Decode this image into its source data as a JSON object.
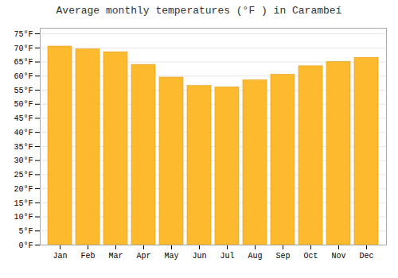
{
  "chart_data": {
    "type": "bar",
    "title": "Average monthly temperatures (°F ) in Carambeí",
    "categories": [
      "Jan",
      "Feb",
      "Mar",
      "Apr",
      "May",
      "Jun",
      "Jul",
      "Aug",
      "Sep",
      "Oct",
      "Nov",
      "Dec"
    ],
    "values": [
      70.5,
      69.5,
      68.5,
      64.0,
      59.5,
      56.5,
      56.0,
      58.5,
      60.5,
      63.5,
      65.0,
      66.5
    ],
    "color": "#FDBA2E",
    "ylim": [
      0,
      77
    ],
    "yticks": [
      {
        "value": 0,
        "label": "0°F"
      },
      {
        "value": 5,
        "label": "5°F"
      },
      {
        "value": 10,
        "label": "10°F"
      },
      {
        "value": 15,
        "label": "15°F"
      },
      {
        "value": 20,
        "label": "20°F"
      },
      {
        "value": 25,
        "label": "25°F"
      },
      {
        "value": 30,
        "label": "30°F"
      },
      {
        "value": 35,
        "label": "35°F"
      },
      {
        "value": 40,
        "label": "40°F"
      },
      {
        "value": 45,
        "label": "45°F"
      },
      {
        "value": 50,
        "label": "50°F"
      },
      {
        "value": 55,
        "label": "55°F"
      },
      {
        "value": 60,
        "label": "60°F"
      },
      {
        "value": 65,
        "label": "65°F"
      },
      {
        "value": 70,
        "label": "70°F"
      },
      {
        "value": 75,
        "label": "75°F"
      }
    ],
    "grid": true
  }
}
